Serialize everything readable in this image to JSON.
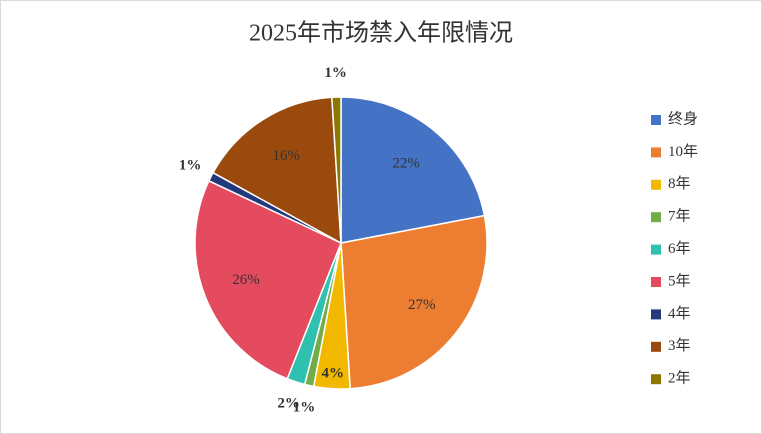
{
  "chart_data": {
    "type": "pie",
    "title": "2025年市场禁入年限情况",
    "categories": [
      "终身",
      "10年",
      "8年",
      "7年",
      "6年",
      "5年",
      "4年",
      "3年",
      "2年"
    ],
    "values": [
      22,
      27,
      4,
      1,
      2,
      26,
      1,
      16,
      1
    ],
    "value_labels": [
      "22%",
      "27%",
      "4%",
      "1%",
      "2%",
      "26%",
      "1%",
      "16%",
      "1%"
    ],
    "colors": [
      "#4472c4",
      "#ed7d31",
      "#f2b800",
      "#70ad47",
      "#2fc0b0",
      "#e54b5e",
      "#22397c",
      "#9a4a0c",
      "#8c7800"
    ],
    "legend": "right"
  }
}
